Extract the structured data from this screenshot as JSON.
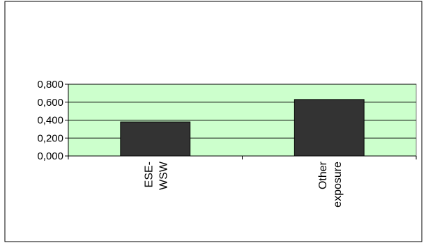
{
  "chart_data": {
    "type": "bar",
    "title": "",
    "xlabel": "",
    "ylabel": "",
    "categories": [
      [
        "ESE-",
        "WSW"
      ],
      [
        "Other",
        "exposure"
      ]
    ],
    "values": [
      0.38,
      0.63
    ],
    "ylim": [
      0,
      0.8
    ],
    "yticks": [
      0,
      0.2,
      0.4,
      0.6,
      0.8
    ],
    "ytick_labels": [
      "0,000",
      "0,200",
      "0,400",
      "0,600",
      "0,800"
    ],
    "grid": true,
    "legend": "none",
    "colors": {
      "plot_background": "#ccffcc",
      "bar_fill": "#333333",
      "bar_stroke": "#000000",
      "gridline": "#000000",
      "border": "#000000"
    }
  }
}
